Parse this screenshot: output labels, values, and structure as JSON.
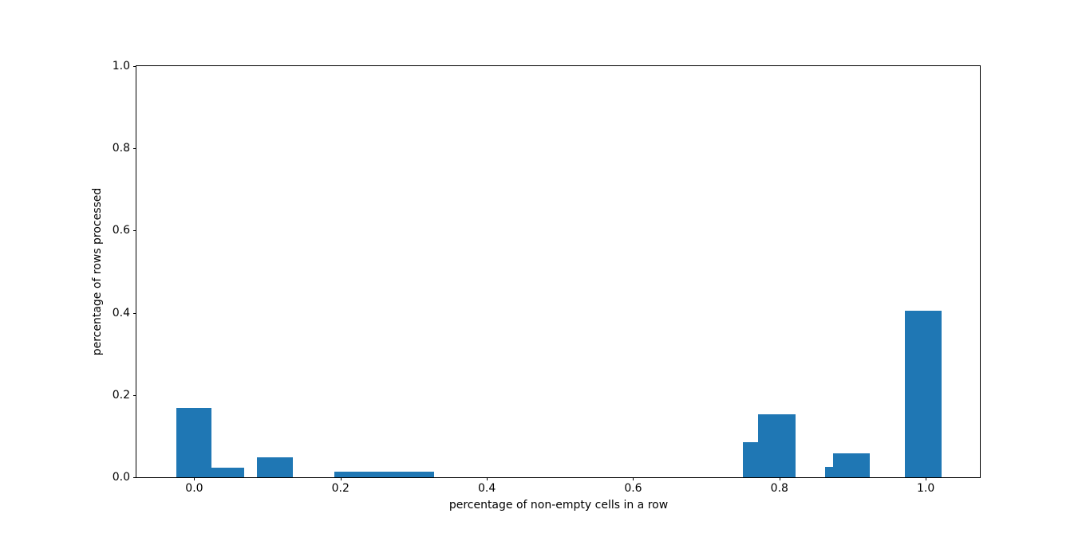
{
  "chart_data": {
    "type": "bar",
    "title": "",
    "xlabel": "percentage of non-empty cells in a row",
    "ylabel": "percentage of rows processed",
    "xlim": [
      -0.079,
      1.074
    ],
    "ylim": [
      0.0,
      1.0
    ],
    "grid": false,
    "legend": null,
    "bar_color": "#1f77b4",
    "spine_color": "#000000",
    "background_color": "#ffffff",
    "x_ticks": [
      {
        "value": 0.0,
        "label": "0.0"
      },
      {
        "value": 0.2,
        "label": "0.2"
      },
      {
        "value": 0.4,
        "label": "0.4"
      },
      {
        "value": 0.6,
        "label": "0.6"
      },
      {
        "value": 0.8,
        "label": "0.8"
      },
      {
        "value": 1.0,
        "label": "1.0"
      }
    ],
    "y_ticks": [
      {
        "value": 0.0,
        "label": "0.0"
      },
      {
        "value": 0.2,
        "label": "0.2"
      },
      {
        "value": 0.4,
        "label": "0.4"
      },
      {
        "value": 0.6,
        "label": "0.6"
      },
      {
        "value": 0.8,
        "label": "0.8"
      },
      {
        "value": 1.0,
        "label": "1.0"
      }
    ],
    "bars": [
      {
        "x_left": -0.025,
        "x_right": 0.024,
        "height": 0.168
      },
      {
        "x_left": 0.024,
        "x_right": 0.068,
        "height": 0.024
      },
      {
        "x_left": 0.086,
        "x_right": 0.135,
        "height": 0.048
      },
      {
        "x_left": 0.192,
        "x_right": 0.328,
        "height": 0.013
      },
      {
        "x_left": 0.75,
        "x_right": 0.771,
        "height": 0.085
      },
      {
        "x_left": 0.771,
        "x_right": 0.822,
        "height": 0.154
      },
      {
        "x_left": 0.862,
        "x_right": 0.873,
        "height": 0.025
      },
      {
        "x_left": 0.873,
        "x_right": 0.923,
        "height": 0.058
      },
      {
        "x_left": 0.972,
        "x_right": 1.022,
        "height": 0.405
      }
    ]
  }
}
